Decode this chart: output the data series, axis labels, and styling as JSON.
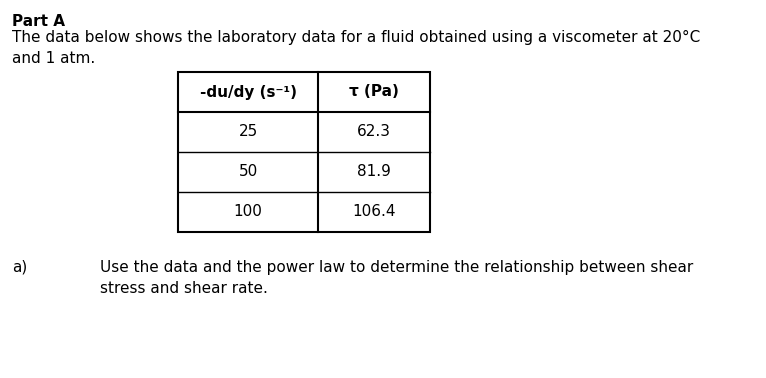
{
  "title_bold": "Part A",
  "subtitle": "The data below shows the laboratory data for a fluid obtained using a viscometer at 20°C\nand 1 atm.",
  "col1_header": "-du/dy (s⁻¹)",
  "col2_header": "τ (Pa)",
  "rows": [
    [
      "25",
      "62.3"
    ],
    [
      "50",
      "81.9"
    ],
    [
      "100",
      "106.4"
    ]
  ],
  "part_a_label": "a)",
  "part_a_text": "Use the data and the power law to determine the relationship between shear\nstress and shear rate.",
  "bg_color": "#ffffff",
  "text_color": "#000000",
  "font_size": 11
}
